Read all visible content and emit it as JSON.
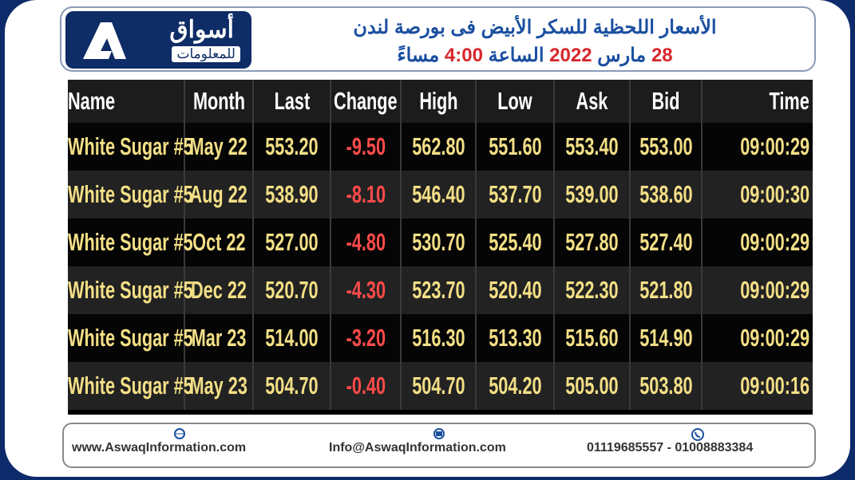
{
  "header": {
    "logo": {
      "name": "أسواق",
      "sub": "للمعلومات"
    },
    "title": "الأسعار اللحظية للسكر الأبيض فى بورصة لندن",
    "date": {
      "day": "28",
      "month": "مارس",
      "year": "2022",
      "time_word": "الساعة",
      "time": "4:00",
      "period": "مساءً"
    }
  },
  "table": {
    "columns": [
      "Name",
      "Month",
      "Last",
      "Change",
      "High",
      "Low",
      "Ask",
      "Bid",
      "Time"
    ],
    "rows": [
      [
        "White Sugar #5",
        "May 22",
        "553.20",
        "-9.50",
        "562.80",
        "551.60",
        "553.40",
        "553.00",
        "09:00:29"
      ],
      [
        "White Sugar #5",
        "Aug 22",
        "538.90",
        "-8.10",
        "546.40",
        "537.70",
        "539.00",
        "538.60",
        "09:00:30"
      ],
      [
        "White Sugar #5",
        "Oct 22",
        "527.00",
        "-4.80",
        "530.70",
        "525.40",
        "527.80",
        "527.40",
        "09:00:29"
      ],
      [
        "White Sugar #5",
        "Dec 22",
        "520.70",
        "-4.30",
        "523.70",
        "520.40",
        "522.30",
        "521.80",
        "09:00:29"
      ],
      [
        "White Sugar #5",
        "Mar 23",
        "514.00",
        "-3.20",
        "516.30",
        "513.30",
        "515.60",
        "514.90",
        "09:00:29"
      ],
      [
        "White Sugar #5",
        "May 23",
        "504.70",
        "-0.40",
        "504.70",
        "504.20",
        "505.00",
        "503.80",
        "09:00:16"
      ]
    ]
  },
  "footer": {
    "website": "www.AswaqInformation.com",
    "email": "Info@AswaqInformation.com",
    "phone": "01119685557 - 01008883384"
  }
}
